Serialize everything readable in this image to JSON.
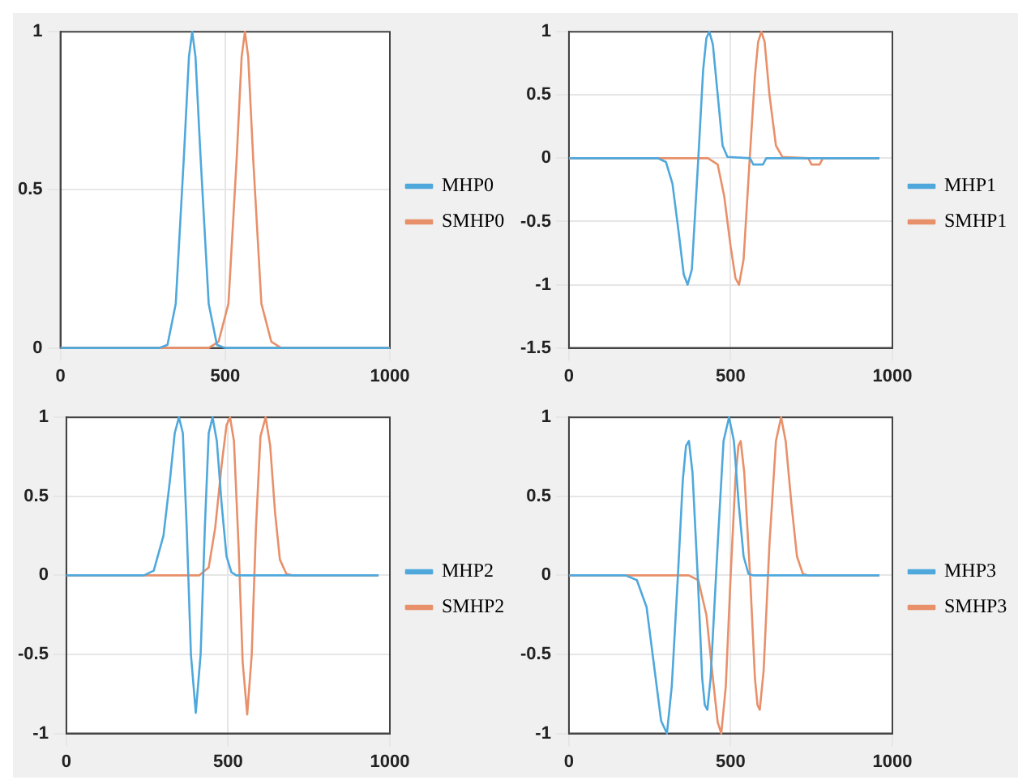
{
  "chart_data": [
    {
      "type": "line",
      "xlim": [
        0,
        1000
      ],
      "xticks": [
        0,
        500,
        1000
      ],
      "ylim": [
        0,
        1
      ],
      "yticks": [
        0,
        0.5,
        1
      ],
      "grid": true,
      "legend": "right",
      "series": [
        {
          "name": "MHP0",
          "color": "#4fa8dc",
          "x": [
            0,
            300,
            325,
            350,
            375,
            390,
            400,
            410,
            425,
            450,
            475,
            500,
            1000
          ],
          "values": [
            0,
            0,
            0.01,
            0.14,
            0.61,
            0.92,
            1,
            0.92,
            0.61,
            0.14,
            0.01,
            0,
            0
          ]
        },
        {
          "name": "SMHP0",
          "color": "#e8906a",
          "x": [
            0,
            450,
            480,
            510,
            535,
            550,
            560,
            570,
            585,
            610,
            640,
            670,
            1000
          ],
          "values": [
            0,
            0,
            0.02,
            0.14,
            0.6,
            0.92,
            1,
            0.92,
            0.6,
            0.14,
            0.02,
            0,
            0
          ]
        }
      ]
    },
    {
      "type": "line",
      "xlim": [
        0,
        1000
      ],
      "xticks": [
        0,
        500,
        1000
      ],
      "ylim": [
        -1.5,
        1
      ],
      "yticks": [
        -1.5,
        -1,
        -0.5,
        0,
        0.5,
        1
      ],
      "grid": true,
      "legend": "right",
      "series": [
        {
          "name": "MHP1",
          "color": "#4fa8dc",
          "x": [
            0,
            275,
            300,
            320,
            340,
            355,
            367,
            380,
            400,
            415,
            425,
            434,
            445,
            460,
            475,
            490,
            560,
            570,
            600,
            610,
            960
          ],
          "values": [
            0,
            0,
            -0.03,
            -0.2,
            -0.6,
            -0.92,
            -1,
            -0.88,
            0,
            0.7,
            0.95,
            1,
            0.9,
            0.5,
            0.1,
            0.01,
            0,
            -0.05,
            -0.05,
            0,
            0
          ]
        },
        {
          "name": "SMHP1",
          "color": "#e8906a",
          "x": [
            0,
            430,
            460,
            480,
            500,
            515,
            526,
            540,
            559,
            575,
            585,
            595,
            605,
            620,
            640,
            660,
            740,
            750,
            775,
            785,
            960
          ],
          "values": [
            0,
            0,
            -0.05,
            -0.3,
            -0.7,
            -0.95,
            -1,
            -0.8,
            0,
            0.65,
            0.92,
            1,
            0.92,
            0.5,
            0.1,
            0.01,
            0,
            -0.05,
            -0.05,
            0,
            0
          ]
        }
      ]
    },
    {
      "type": "line",
      "xlim": [
        0,
        1000
      ],
      "xticks": [
        0,
        500,
        1000
      ],
      "ylim": [
        -1,
        1
      ],
      "yticks": [
        -1,
        -0.5,
        0,
        0.5,
        1
      ],
      "grid": true,
      "legend": "right",
      "series": [
        {
          "name": "MHP2",
          "color": "#4fa8dc",
          "x": [
            0,
            240,
            270,
            300,
            320,
            335,
            348,
            360,
            372,
            385,
            400,
            415,
            428,
            440,
            452,
            465,
            480,
            495,
            510,
            525,
            965
          ],
          "values": [
            0,
            0,
            0.03,
            0.25,
            0.6,
            0.9,
            1,
            0.9,
            0.3,
            -0.5,
            -0.87,
            -0.5,
            0.3,
            0.9,
            1,
            0.85,
            0.45,
            0.12,
            0.02,
            0,
            0
          ]
        },
        {
          "name": "SMHP2",
          "color": "#e8906a",
          "x": [
            0,
            410,
            440,
            460,
            480,
            495,
            506,
            518,
            532,
            545,
            559,
            573,
            586,
            600,
            616,
            630,
            645,
            660,
            680,
            700,
            965
          ],
          "values": [
            0,
            0,
            0.05,
            0.3,
            0.7,
            0.95,
            1,
            0.85,
            0.2,
            -0.55,
            -0.88,
            -0.5,
            0.3,
            0.88,
            1,
            0.82,
            0.4,
            0.1,
            0.01,
            0,
            0
          ]
        }
      ]
    },
    {
      "type": "line",
      "xlim": [
        0,
        1000
      ],
      "xticks": [
        0,
        500,
        1000
      ],
      "ylim": [
        -1,
        1
      ],
      "yticks": [
        -1,
        -0.5,
        0,
        0.5,
        1
      ],
      "grid": true,
      "legend": "right",
      "series": [
        {
          "name": "MHP3",
          "color": "#4fa8dc",
          "x": [
            0,
            175,
            210,
            240,
            265,
            285,
            303,
            318,
            337,
            352,
            362,
            371,
            382,
            398,
            412,
            420,
            428,
            438,
            460,
            478,
            495,
            510,
            525,
            540,
            555,
            570,
            960
          ],
          "values": [
            0,
            0,
            -0.03,
            -0.2,
            -0.6,
            -0.92,
            -1,
            -0.7,
            0,
            0.6,
            0.82,
            0.85,
            0.65,
            0,
            -0.65,
            -0.82,
            -0.85,
            -0.65,
            0.2,
            0.85,
            1,
            0.85,
            0.45,
            0.12,
            0.01,
            0,
            0
          ]
        },
        {
          "name": "SMHP3",
          "color": "#e8906a",
          "x": [
            0,
            370,
            400,
            425,
            445,
            460,
            471,
            485,
            500,
            515,
            524,
            531,
            542,
            560,
            575,
            583,
            590,
            602,
            620,
            640,
            656,
            670,
            688,
            705,
            723,
            740,
            960
          ],
          "values": [
            0,
            0,
            -0.03,
            -0.25,
            -0.65,
            -0.93,
            -1,
            -0.7,
            0,
            0.62,
            0.82,
            0.85,
            0.65,
            0,
            -0.65,
            -0.82,
            -0.85,
            -0.6,
            0.2,
            0.85,
            1,
            0.85,
            0.45,
            0.12,
            0.01,
            0,
            0
          ]
        }
      ]
    }
  ]
}
